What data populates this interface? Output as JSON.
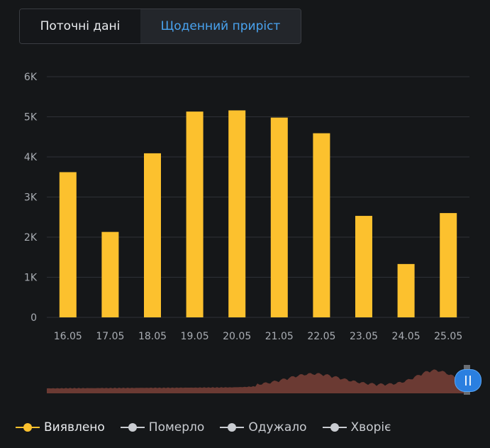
{
  "tabs": [
    {
      "label": "Поточні дані",
      "active": false
    },
    {
      "label": "Щоденний приріст",
      "active": true
    }
  ],
  "chart_data": {
    "type": "bar",
    "categories": [
      "16.05",
      "17.05",
      "18.05",
      "19.05",
      "20.05",
      "21.05",
      "22.05",
      "23.05",
      "24.05",
      "25.05"
    ],
    "series": [
      {
        "name": "Виявлено",
        "color": "#fcc12e",
        "values": [
          3620,
          2130,
          4090,
          5130,
          5160,
          4980,
          4590,
          2530,
          1330,
          2600
        ]
      }
    ],
    "y_ticks": [
      "0",
      "1K",
      "2K",
      "3K",
      "4K",
      "5K",
      "6K"
    ],
    "ylim": [
      0,
      6000
    ],
    "grid": true,
    "legend_position": "bottom-left",
    "title": "",
    "xlabel": "",
    "ylabel": ""
  },
  "legend": [
    {
      "label": "Виявлено",
      "color": "#fcc12e",
      "active": true
    },
    {
      "label": "Померло",
      "color": "#c9ccd1",
      "active": false
    },
    {
      "label": "Одужало",
      "color": "#c9ccd1",
      "active": false
    },
    {
      "label": "Хворіє",
      "color": "#c9ccd1",
      "active": false
    }
  ],
  "navigator": {
    "color": "#6b3a33"
  }
}
